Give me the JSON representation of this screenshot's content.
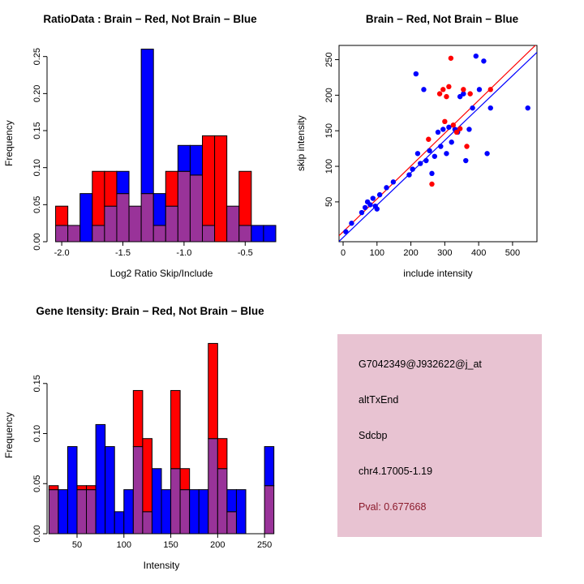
{
  "colors": {
    "brain": "#FF0000",
    "not_brain": "#0000FF",
    "overlap": "#993399",
    "axis": "#000000",
    "background": "#FFFFFF"
  },
  "chart_data": [
    {
      "type": "bar",
      "subtype": "overlapping-histogram",
      "title": "RatioData : Brain − Red, Not Brain − Blue",
      "xlabel": "Log2 Ratio Skip/Include",
      "ylabel": "Frequency",
      "bin_width": 0.1,
      "bin_centers": [
        -2.0,
        -1.9,
        -1.8,
        -1.7,
        -1.6,
        -1.5,
        -1.4,
        -1.3,
        -1.2,
        -1.1,
        -1.0,
        -0.9,
        -0.8,
        -0.7,
        -0.6,
        -0.5,
        -0.4,
        -0.3
      ],
      "series": [
        {
          "name": "Brain",
          "color": "#FF0000",
          "values": [
            0.048,
            0.022,
            0.0,
            0.095,
            0.095,
            0.065,
            0.048,
            0.065,
            0.022,
            0.095,
            0.095,
            0.09,
            0.143,
            0.143,
            0.048,
            0.095,
            0.0,
            0.0
          ]
        },
        {
          "name": "Not Brain",
          "color": "#0000FF",
          "values": [
            0.022,
            0.022,
            0.065,
            0.022,
            0.048,
            0.095,
            0.048,
            0.26,
            0.065,
            0.048,
            0.13,
            0.13,
            0.022,
            0.0,
            0.048,
            0.022,
            0.022,
            0.022
          ]
        }
      ],
      "overlap_color": "#993399",
      "xlim": [
        -2.12,
        -0.25
      ],
      "ylim": [
        0,
        0.265
      ],
      "xticks": [
        "-2.0",
        "-1.5",
        "-1.0",
        "-0.5"
      ],
      "yticks": [
        "0.00",
        "0.05",
        "0.10",
        "0.15",
        "0.20",
        "0.25"
      ],
      "grid": false,
      "legend": "none"
    },
    {
      "type": "scatter",
      "title": "Brain − Red, Not Brain − Blue",
      "xlabel": "include intensity",
      "ylabel": "skip intensity",
      "xlim": [
        -12,
        572
      ],
      "ylim": [
        -6,
        270
      ],
      "xticks": [
        "0",
        "100",
        "200",
        "300",
        "400",
        "500"
      ],
      "yticks": [
        "50",
        "100",
        "150",
        "200",
        "250"
      ],
      "box": true,
      "series": [
        {
          "name": "Not Brain",
          "color": "#0000FF",
          "points": [
            [
              8,
              8
            ],
            [
              25,
              20
            ],
            [
              55,
              35
            ],
            [
              65,
              42
            ],
            [
              72,
              50
            ],
            [
              80,
              46
            ],
            [
              88,
              55
            ],
            [
              95,
              44
            ],
            [
              100,
              40
            ],
            [
              108,
              60
            ],
            [
              128,
              70
            ],
            [
              148,
              78
            ],
            [
              195,
              88
            ],
            [
              205,
              96
            ],
            [
              215,
              230
            ],
            [
              220,
              118
            ],
            [
              228,
              104
            ],
            [
              238,
              208
            ],
            [
              245,
              108
            ],
            [
              255,
              122
            ],
            [
              262,
              90
            ],
            [
              270,
              114
            ],
            [
              280,
              148
            ],
            [
              288,
              128
            ],
            [
              295,
              152
            ],
            [
              305,
              118
            ],
            [
              312,
              155
            ],
            [
              320,
              134
            ],
            [
              330,
              152
            ],
            [
              338,
              148
            ],
            [
              345,
              198
            ],
            [
              355,
              202
            ],
            [
              362,
              108
            ],
            [
              372,
              152
            ],
            [
              382,
              182
            ],
            [
              392,
              255
            ],
            [
              402,
              208
            ],
            [
              415,
              248
            ],
            [
              425,
              118
            ],
            [
              435,
              182
            ],
            [
              545,
              182
            ]
          ]
        },
        {
          "name": "Brain",
          "color": "#FF0000",
          "points": [
            [
              252,
              138
            ],
            [
              262,
              75
            ],
            [
              285,
              202
            ],
            [
              295,
              208
            ],
            [
              300,
              163
            ],
            [
              305,
              198
            ],
            [
              312,
              212
            ],
            [
              318,
              252
            ],
            [
              325,
              158
            ],
            [
              335,
              148
            ],
            [
              345,
              153
            ],
            [
              355,
              208
            ],
            [
              365,
              128
            ],
            [
              375,
              202
            ],
            [
              435,
              208
            ]
          ]
        }
      ],
      "lines": [
        {
          "name": "brain-fit",
          "color": "#FF0000",
          "intercept": 8,
          "slope": 0.462
        },
        {
          "name": "not-brain-fit",
          "color": "#0000FF",
          "intercept": 0,
          "slope": 0.455
        }
      ],
      "grid": false,
      "legend": "none"
    },
    {
      "type": "bar",
      "subtype": "overlapping-histogram",
      "title": "Gene Itensity: Brain − Red, Not Brain − Blue",
      "xlabel": "Intensity",
      "ylabel": "Frequency",
      "bin_width": 10,
      "bin_centers": [
        25,
        35,
        45,
        55,
        65,
        75,
        85,
        95,
        105,
        115,
        125,
        135,
        145,
        155,
        165,
        175,
        185,
        195,
        205,
        215,
        225,
        235,
        245,
        255
      ],
      "series": [
        {
          "name": "Brain",
          "color": "#FF0000",
          "values": [
            0.048,
            0.0,
            0.0,
            0.048,
            0.048,
            0.0,
            0.0,
            0.0,
            0.0,
            0.143,
            0.095,
            0.0,
            0.0,
            0.143,
            0.065,
            0.0,
            0.0,
            0.19,
            0.095,
            0.022,
            0.0,
            0.0,
            0.0,
            0.048
          ]
        },
        {
          "name": "Not Brain",
          "color": "#0000FF",
          "values": [
            0.044,
            0.044,
            0.087,
            0.044,
            0.044,
            0.109,
            0.087,
            0.022,
            0.044,
            0.087,
            0.022,
            0.065,
            0.044,
            0.065,
            0.044,
            0.044,
            0.044,
            0.095,
            0.065,
            0.044,
            0.044,
            0.0,
            0.0,
            0.087
          ]
        }
      ],
      "overlap_color": "#993399",
      "xlim": [
        18,
        262
      ],
      "ylim": [
        0,
        0.196
      ],
      "xticks": [
        "50",
        "100",
        "150",
        "200",
        "250"
      ],
      "yticks": [
        "0.00",
        "0.05",
        "0.10",
        "0.15"
      ],
      "grid": false,
      "legend": "none"
    }
  ],
  "info_box": {
    "bg": "#E8C3D2",
    "pval_color": "#8B1A2B",
    "lines": [
      "G7042349@J932622@j_at",
      "altTxEnd",
      "Sdcbp",
      "chr4.17005-1.19",
      "Pval: 0.677668"
    ]
  }
}
